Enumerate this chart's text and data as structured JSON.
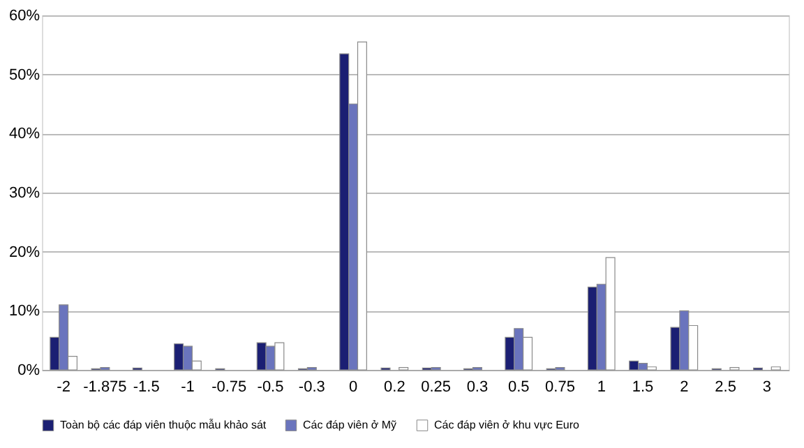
{
  "chart_data": {
    "type": "bar",
    "categories": [
      "-2",
      "-1.875",
      "-1.5",
      "-1",
      "-0.75",
      "-0.5",
      "-0.3",
      "0",
      "0.2",
      "0.25",
      "0.3",
      "0.5",
      "0.75",
      "1",
      "1.5",
      "2",
      "2.5",
      "3"
    ],
    "series": [
      {
        "name": "Toàn bộ các đáp viên thuộc mẫu khảo sát",
        "color": "#1b1f73",
        "values": [
          5.5,
          0.2,
          0.3,
          4.4,
          0.2,
          4.6,
          0.2,
          53.5,
          0.3,
          0.3,
          0.2,
          5.5,
          0.2,
          14,
          1.5,
          7.2,
          0.2,
          0.3
        ]
      },
      {
        "name": "Các đáp viên ở Mỹ",
        "color": "#6a74bd",
        "values": [
          11,
          0.4,
          0,
          4.0,
          0,
          4.0,
          0.4,
          45,
          0,
          0.4,
          0.4,
          7,
          0.4,
          14.5,
          1.1,
          10,
          0,
          0
        ]
      },
      {
        "name": "Các đáp viên ở khu vực Euro",
        "color": "#ffffff",
        "values": [
          2.3,
          0,
          0,
          1.5,
          0,
          4.6,
          0,
          55.5,
          0.4,
          0,
          0,
          5.5,
          0,
          19,
          0.5,
          7.5,
          0.4,
          0.5
        ]
      }
    ],
    "ylim": [
      0,
      60
    ],
    "yticks": [
      {
        "value": 0,
        "label": "0%"
      },
      {
        "value": 10,
        "label": "10%"
      },
      {
        "value": 20,
        "label": "20%"
      },
      {
        "value": 30,
        "label": "30%"
      },
      {
        "value": 40,
        "label": "40%"
      },
      {
        "value": 50,
        "label": "50%"
      },
      {
        "value": 60,
        "label": "60%"
      }
    ],
    "grid": "y",
    "legend": "bottom"
  }
}
